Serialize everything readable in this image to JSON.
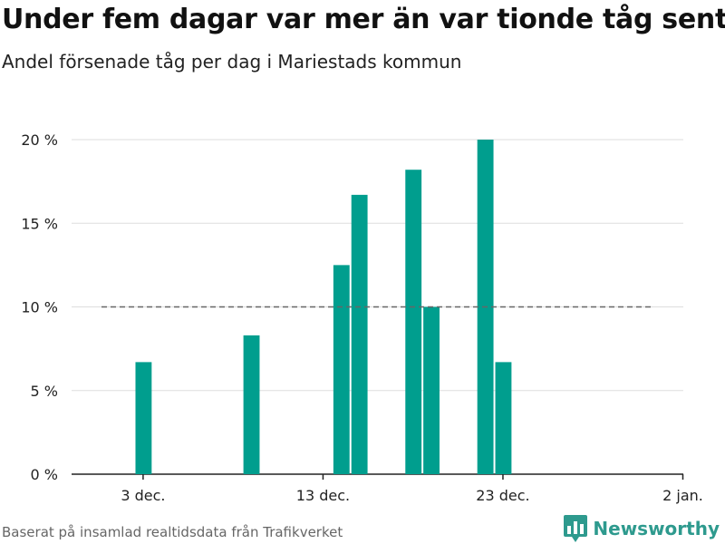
{
  "header": {
    "title": "Under fem dagar var mer än var tionde tåg sent",
    "subtitle": "Andel försenade tåg per dag i Mariestads kommun"
  },
  "footer": {
    "source": "Baserat på insamlad realtidsdata från Trafikverket",
    "brand": "Newsworthy"
  },
  "colors": {
    "bar": "#009e8e",
    "threshold": "#666666",
    "grid": "#dddddd",
    "brand": "#2e9a8e"
  },
  "chart_data": {
    "type": "bar",
    "title": "Under fem dagar var mer än var tionde tåg sent",
    "subtitle": "Andel försenade tåg per dag i Mariestads kommun",
    "x_axis": {
      "ticks": [
        "3 dec.",
        "13 dec.",
        "23 dec.",
        "2 jan."
      ]
    },
    "y_axis": {
      "ticks": [
        "0 %",
        "5 %",
        "10 %",
        "15 %",
        "20 %"
      ],
      "range": [
        0,
        20
      ]
    },
    "date_range": [
      "2019-11-29",
      "2020-01-02"
    ],
    "series": [
      {
        "points": [
          {
            "date": "2019-12-03",
            "value": 6.7
          },
          {
            "date": "2019-12-09",
            "value": 8.3
          },
          {
            "date": "2019-12-14",
            "value": 12.5
          },
          {
            "date": "2019-12-15",
            "value": 16.7
          },
          {
            "date": "2019-12-18",
            "value": 18.2
          },
          {
            "date": "2019-12-19",
            "value": 10.0
          },
          {
            "date": "2019-12-22",
            "value": 20.0
          },
          {
            "date": "2019-12-23",
            "value": 6.7
          }
        ]
      }
    ],
    "threshold": {
      "value": 10,
      "style": "dashed"
    },
    "grid": true
  }
}
